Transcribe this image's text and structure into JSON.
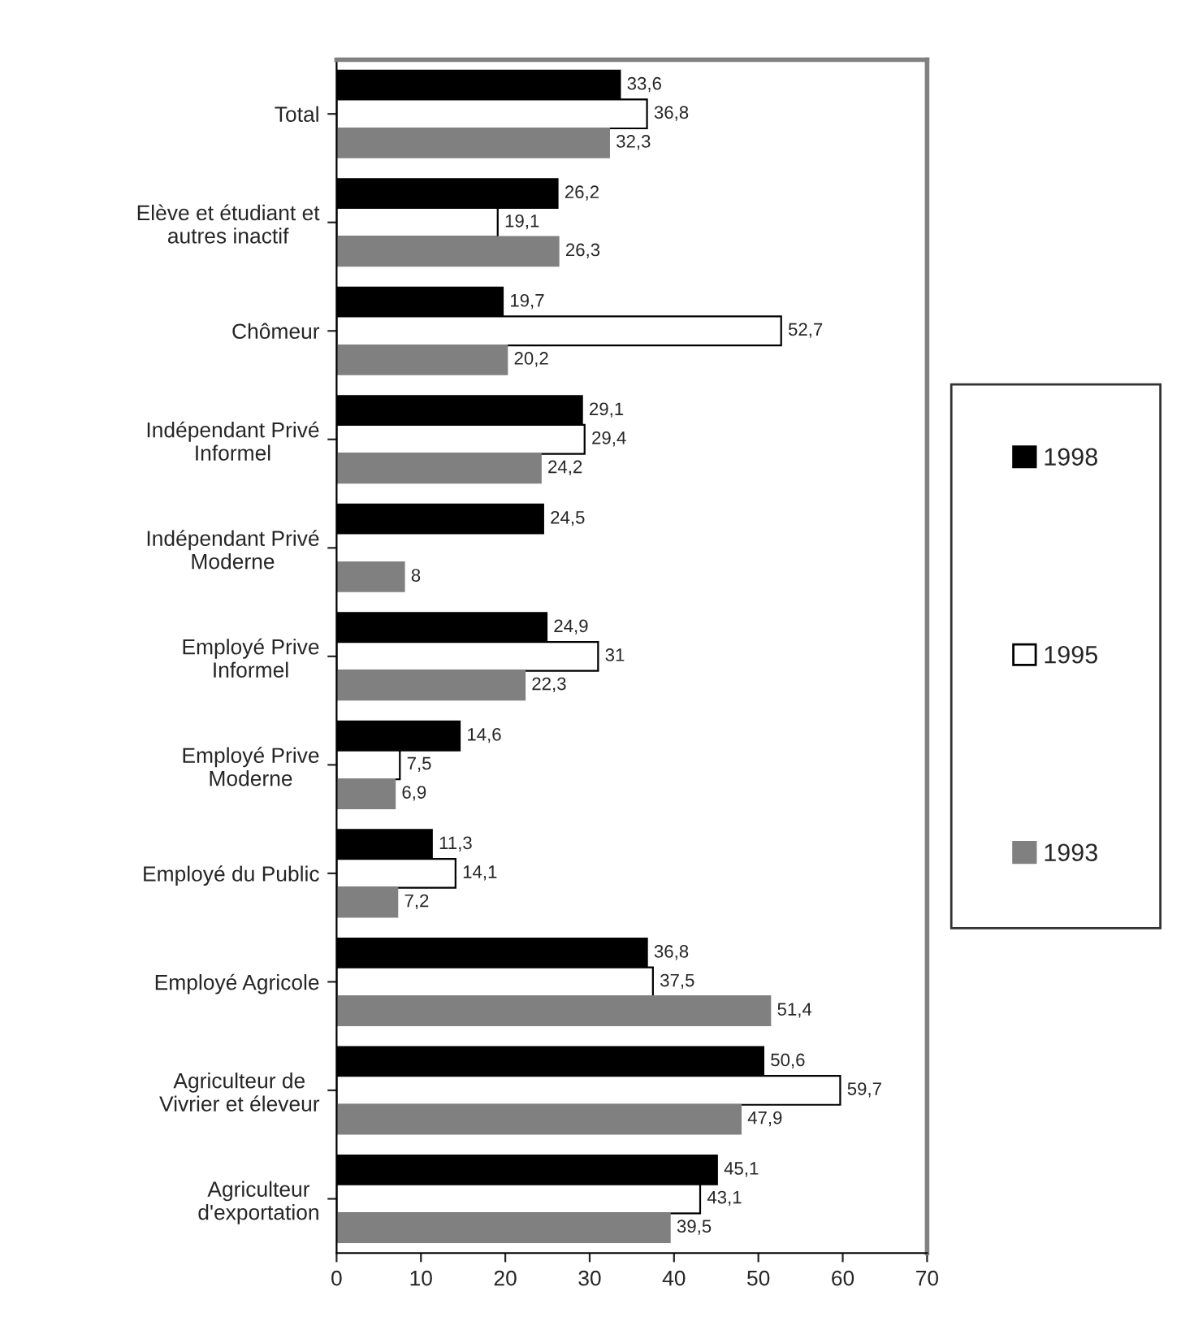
{
  "chart_data": {
    "type": "bar",
    "orientation": "horizontal",
    "categories": [
      "Total",
      "Elève et étudiant et autres inactif",
      "Chômeur",
      "Indépendant Privé Informel",
      "Indépendant Privé Moderne",
      "Employé Prive Informel",
      "Employé Prive Moderne",
      "Employé du Public",
      "Employé Agricole",
      "Agriculteur de Vivrier et éleveur",
      "Agriculteur d'exportation"
    ],
    "series": [
      {
        "name": "1998",
        "color": "#000000",
        "values": [
          33.6,
          26.2,
          19.7,
          29.1,
          24.5,
          24.9,
          14.6,
          11.3,
          36.8,
          50.6,
          45.1
        ],
        "value_labels": [
          "33,6",
          "26,2",
          "19,7",
          "29,1",
          "24,5",
          "24,9",
          "14,6",
          "11,3",
          "36,8",
          "50,6",
          "45,1"
        ]
      },
      {
        "name": "1995",
        "color": "#ffffff",
        "values": [
          36.8,
          19.1,
          52.7,
          29.4,
          null,
          31,
          7.5,
          14.1,
          37.5,
          59.7,
          43.1
        ],
        "value_labels": [
          "36,8",
          "19,1",
          "52,7",
          "29,4",
          null,
          "31",
          "7,5",
          "14,1",
          "37,5",
          "59,7",
          "43,1"
        ]
      },
      {
        "name": "1993",
        "color": "#808080",
        "values": [
          32.3,
          26.3,
          20.2,
          24.2,
          8,
          22.3,
          6.9,
          7.2,
          51.4,
          47.9,
          39.5
        ],
        "value_labels": [
          "32,3",
          "26,3",
          "20,2",
          "24,2",
          "8",
          "22,3",
          "6,9",
          "7,2",
          "51,4",
          "47,9",
          "39,5"
        ]
      }
    ],
    "xlim": [
      0,
      70
    ],
    "xticks": [
      0,
      10,
      20,
      30,
      40,
      50,
      60,
      70
    ],
    "legend": "right",
    "grid": false
  }
}
